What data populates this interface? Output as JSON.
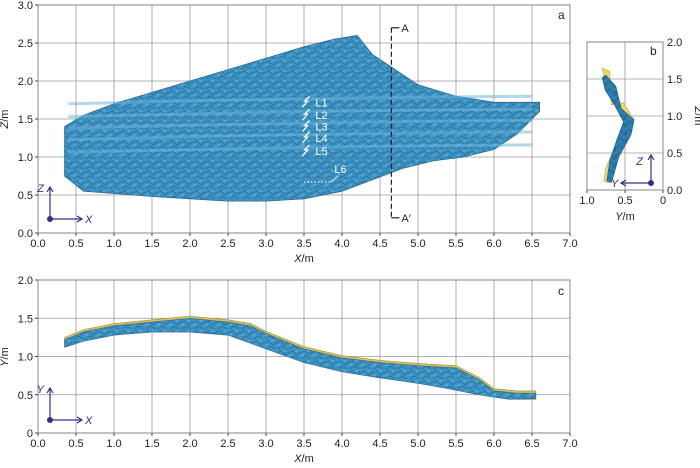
{
  "chart_data": [
    {
      "panel": "a",
      "type": "area",
      "xlabel": "X/m",
      "ylabel": "Z/m",
      "xlim": [
        0,
        7
      ],
      "ylim": [
        0,
        3
      ],
      "xticks": [
        "0.0",
        "0.5",
        "1.0",
        "1.5",
        "2.0",
        "2.5",
        "3.0",
        "3.5",
        "4.0",
        "4.5",
        "5.0",
        "5.5",
        "6.0",
        "6.5",
        "7.0"
      ],
      "yticks": [
        "0.0",
        "0.5",
        "1.0",
        "1.5",
        "2.0",
        "2.5",
        "3.0"
      ],
      "grid": true,
      "surface_color": "#3d94c4",
      "outline_top": [
        [
          0.35,
          1.4
        ],
        [
          0.6,
          1.55
        ],
        [
          1.0,
          1.7
        ],
        [
          1.5,
          1.85
        ],
        [
          2.0,
          2.0
        ],
        [
          2.5,
          2.15
        ],
        [
          3.0,
          2.3
        ],
        [
          3.5,
          2.45
        ],
        [
          3.9,
          2.55
        ],
        [
          4.2,
          2.6
        ],
        [
          4.4,
          2.35
        ],
        [
          4.7,
          2.15
        ],
        [
          5.0,
          1.95
        ],
        [
          5.5,
          1.8
        ],
        [
          6.0,
          1.72
        ],
        [
          6.6,
          1.72
        ]
      ],
      "outline_bottom": [
        [
          6.6,
          1.6
        ],
        [
          6.3,
          1.3
        ],
        [
          6.0,
          1.1
        ],
        [
          5.6,
          1.0
        ],
        [
          5.2,
          0.95
        ],
        [
          4.8,
          0.85
        ],
        [
          4.4,
          0.7
        ],
        [
          4.0,
          0.55
        ],
        [
          3.5,
          0.45
        ],
        [
          3.0,
          0.42
        ],
        [
          2.5,
          0.42
        ],
        [
          2.0,
          0.45
        ],
        [
          1.5,
          0.48
        ],
        [
          1.0,
          0.52
        ],
        [
          0.6,
          0.55
        ],
        [
          0.35,
          0.75
        ]
      ],
      "layers": [
        {
          "label": "L1",
          "y": 1.72,
          "label_x": 3.65
        },
        {
          "label": "L2",
          "y": 1.55,
          "label_x": 3.65
        },
        {
          "label": "L3",
          "y": 1.4,
          "label_x": 3.65
        },
        {
          "label": "L4",
          "y": 1.25,
          "label_x": 3.65
        },
        {
          "label": "L5",
          "y": 1.08,
          "label_x": 3.65
        },
        {
          "label": "L6",
          "y": 0.67,
          "label_x": 3.9
        }
      ],
      "section_line": {
        "x": 4.65,
        "top_label": "A",
        "bottom_label": "A′",
        "y_range": [
          0.2,
          2.7
        ]
      },
      "axes_gizmo": {
        "up": "Z",
        "right": "X"
      }
    },
    {
      "panel": "b",
      "type": "area",
      "xlabel": "Y/m",
      "ylabel": "Z/m",
      "xlim": [
        1.0,
        0.0
      ],
      "ylim": [
        0,
        2.0
      ],
      "xticks": [
        "1.0",
        "0.5",
        "0"
      ],
      "yticks": [
        "0.0",
        "0.5",
        "1.0",
        "1.5",
        "2.0"
      ],
      "grid": true,
      "surface_color": "#3d94c4",
      "back_color": "#e8d96a",
      "axes_gizmo": {
        "up": "Z",
        "right": "Y"
      }
    },
    {
      "panel": "c",
      "type": "area",
      "xlabel": "X/m",
      "ylabel": "Y/m",
      "xlim": [
        0,
        7
      ],
      "ylim": [
        0,
        2.0
      ],
      "xticks": [
        "0.0",
        "0.5",
        "1.0",
        "1.5",
        "2.0",
        "2.5",
        "3.0",
        "3.5",
        "4.0",
        "4.5",
        "5.0",
        "5.5",
        "6.0",
        "6.5",
        "7.0"
      ],
      "yticks": [
        "0",
        "0.5",
        "1.0",
        "1.5",
        "2.0"
      ],
      "grid": true,
      "surface_color": "#3d94c4",
      "top_color": "#d4c060",
      "profile_top": [
        [
          0.35,
          1.22
        ],
        [
          0.6,
          1.32
        ],
        [
          1.0,
          1.4
        ],
        [
          1.5,
          1.45
        ],
        [
          2.0,
          1.5
        ],
        [
          2.5,
          1.45
        ],
        [
          2.8,
          1.4
        ],
        [
          3.0,
          1.3
        ],
        [
          3.5,
          1.1
        ],
        [
          4.0,
          0.98
        ],
        [
          4.5,
          0.92
        ],
        [
          5.0,
          0.88
        ],
        [
          5.5,
          0.85
        ],
        [
          5.8,
          0.7
        ],
        [
          6.0,
          0.55
        ],
        [
          6.3,
          0.52
        ],
        [
          6.55,
          0.52
        ]
      ],
      "profile_bottom": [
        [
          6.55,
          0.45
        ],
        [
          6.2,
          0.44
        ],
        [
          5.8,
          0.5
        ],
        [
          5.4,
          0.58
        ],
        [
          5.0,
          0.65
        ],
        [
          4.5,
          0.72
        ],
        [
          4.0,
          0.8
        ],
        [
          3.5,
          0.92
        ],
        [
          3.0,
          1.1
        ],
        [
          2.5,
          1.28
        ],
        [
          2.0,
          1.32
        ],
        [
          1.5,
          1.32
        ],
        [
          1.0,
          1.28
        ],
        [
          0.6,
          1.2
        ],
        [
          0.35,
          1.12
        ]
      ],
      "axes_gizmo": {
        "up": "Y",
        "right": "X"
      }
    }
  ]
}
